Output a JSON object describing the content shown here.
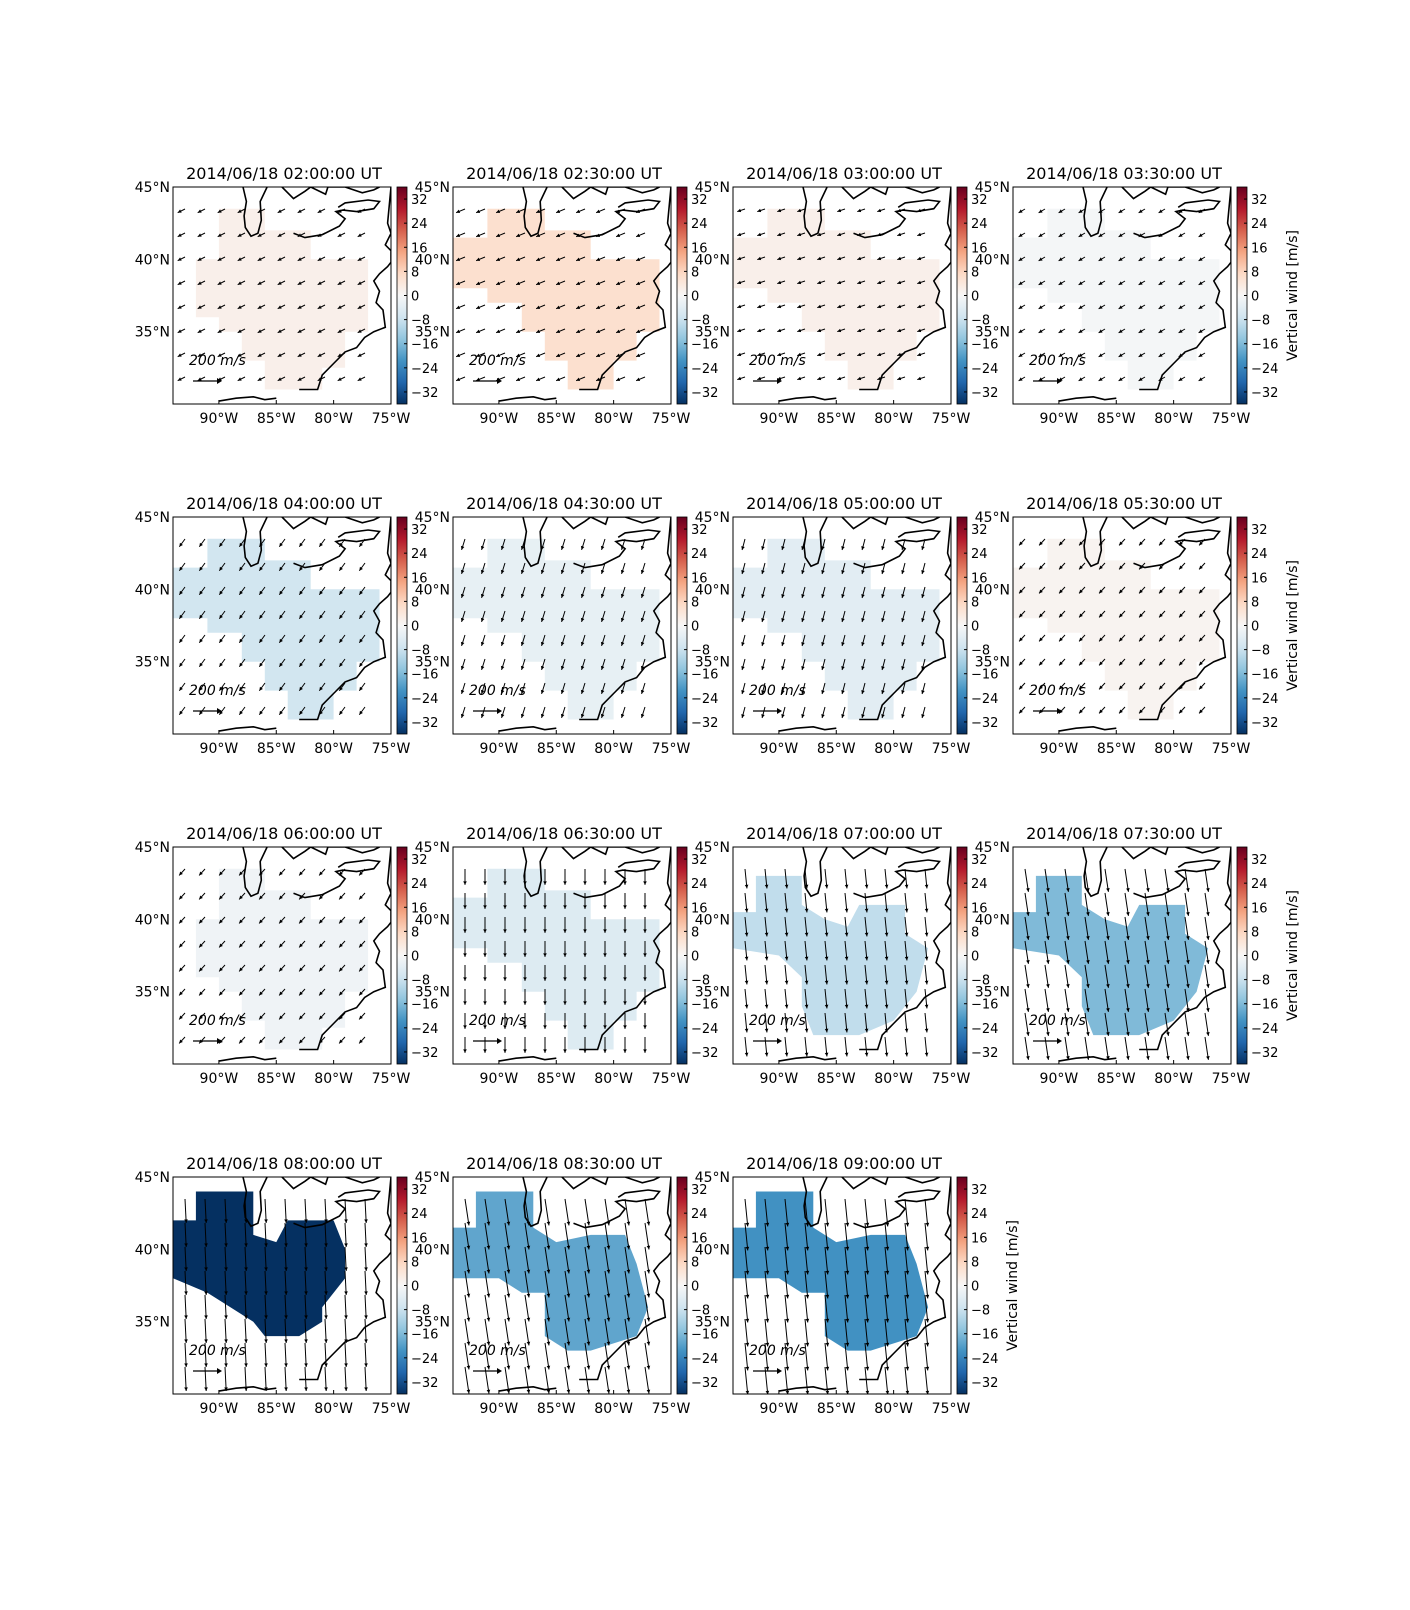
{
  "chart_data": {
    "type": "heatmap",
    "description_units": {
      "lon_ticks": [
        "90°W",
        "85°W",
        "80°W",
        "75°W"
      ],
      "lat_ticks": [
        "45°N",
        "40°N",
        "35°N"
      ],
      "colorbar_ticks": [
        "32",
        "24",
        "16",
        "8",
        "0",
        "−8",
        "−16",
        "−24",
        "−32"
      ],
      "colorbar_label": "Vertical wind [m/s]",
      "colorbar_range": [
        -36,
        36
      ],
      "colormap": "RdBu_r",
      "quiver_key_label": "200 m/s",
      "lon_range": [
        -94,
        -75
      ],
      "lat_range": [
        30,
        45
      ]
    },
    "panels": [
      {
        "title": "2014/06/18 02:00:00 UT",
        "value": 2,
        "arrow_u": -0.3,
        "arrow_v": -0.15,
        "arrow_scale": 0.12,
        "show_cb_label": false
      },
      {
        "title": "2014/06/18 02:30:00 UT",
        "value": 6,
        "arrow_u": -0.85,
        "arrow_v": -0.35,
        "arrow_scale": 0.2,
        "show_cb_label": false
      },
      {
        "title": "2014/06/18 03:00:00 UT",
        "value": 2,
        "arrow_u": -0.6,
        "arrow_v": -0.2,
        "arrow_scale": 0.12,
        "show_cb_label": false
      },
      {
        "title": "2014/06/18 03:30:00 UT",
        "value": -0.5,
        "arrow_u": -0.5,
        "arrow_v": -0.3,
        "arrow_scale": 0.08,
        "show_cb_label": true
      },
      {
        "title": "2014/06/18 04:00:00 UT",
        "value": -7,
        "arrow_u": -0.55,
        "arrow_v": -0.75,
        "arrow_scale": 0.2,
        "show_cb_label": false
      },
      {
        "title": "2014/06/18 04:30:00 UT",
        "value": -3,
        "arrow_u": -0.3,
        "arrow_v": -0.95,
        "arrow_scale": 0.3,
        "show_cb_label": false
      },
      {
        "title": "2014/06/18 05:00:00 UT",
        "value": -4,
        "arrow_u": -0.25,
        "arrow_v": -0.95,
        "arrow_scale": 0.3,
        "show_cb_label": false
      },
      {
        "title": "2014/06/18 05:30:00 UT",
        "value": 1,
        "arrow_u": -0.6,
        "arrow_v": -0.65,
        "arrow_scale": 0.15,
        "show_cb_label": true
      },
      {
        "title": "2014/06/18 06:00:00 UT",
        "value": -1.5,
        "arrow_u": -0.55,
        "arrow_v": -0.6,
        "arrow_scale": 0.15,
        "show_cb_label": false
      },
      {
        "title": "2014/06/18 06:30:00 UT",
        "value": -5,
        "arrow_u": 0.0,
        "arrow_v": -1.0,
        "arrow_scale": 0.55,
        "show_cb_label": false
      },
      {
        "title": "2014/06/18 07:00:00 UT",
        "value": -9,
        "arrow_u": 0.1,
        "arrow_v": -1.0,
        "arrow_scale": 0.75,
        "show_cb_label": false
      },
      {
        "title": "2014/06/18 07:30:00 UT",
        "value": -16,
        "arrow_u": 0.15,
        "arrow_v": -1.0,
        "arrow_scale": 0.95,
        "show_cb_label": true
      },
      {
        "title": "2014/06/18 08:00:00 UT",
        "value": -36,
        "arrow_u": 0.05,
        "arrow_v": -1.0,
        "arrow_scale": 1.0,
        "show_cb_label": false
      },
      {
        "title": "2014/06/18 08:30:00 UT",
        "value": -19,
        "arrow_u": 0.15,
        "arrow_v": -1.0,
        "arrow_scale": 1.15,
        "show_cb_label": false
      },
      {
        "title": "2014/06/18 09:00:00 UT",
        "value": -22,
        "arrow_u": 0.1,
        "arrow_v": -1.0,
        "arrow_scale": 1.2,
        "show_cb_label": true
      }
    ]
  },
  "colors": {
    "coast": "#000000",
    "frame": "#000000"
  }
}
